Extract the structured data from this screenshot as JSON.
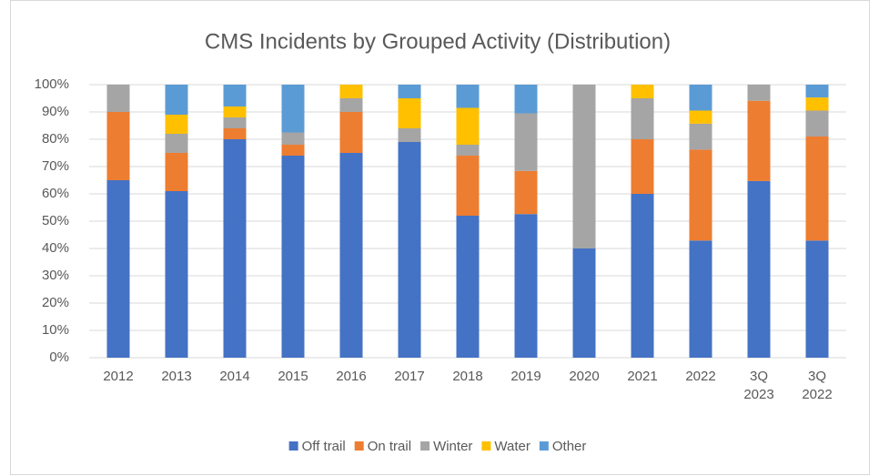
{
  "chart_data": {
    "type": "stacked_bar_100",
    "title": "CMS Incidents by Grouped Activity (Distribution)",
    "categories": [
      "2012",
      "2013",
      "2014",
      "2015",
      "2016",
      "2017",
      "2018",
      "2019",
      "2020",
      "2021",
      "2022",
      "3Q 2023",
      "3Q 2022"
    ],
    "series": [
      {
        "name": "Off trail",
        "color": "#4472c4",
        "values": [
          65,
          61,
          80,
          74,
          75,
          79,
          52,
          52.6,
          40,
          60,
          42.9,
          64.7,
          42.9
        ]
      },
      {
        "name": "On trail",
        "color": "#ed7d31",
        "values": [
          25,
          14,
          4,
          4,
          15,
          0,
          22,
          15.8,
          0,
          20,
          33.3,
          29.4,
          38.1
        ]
      },
      {
        "name": "Winter",
        "color": "#a5a5a5",
        "values": [
          10,
          7,
          4,
          4.5,
          5,
          5,
          4,
          21.1,
          60,
          15,
          9.5,
          5.9,
          9.5
        ]
      },
      {
        "name": "Water",
        "color": "#ffc000",
        "values": [
          0,
          7,
          4,
          0,
          5,
          11,
          13.5,
          0,
          0,
          5,
          4.8,
          0,
          4.8
        ]
      },
      {
        "name": "Other",
        "color": "#5b9bd5",
        "values": [
          0,
          11,
          8,
          17.5,
          0,
          5,
          8.5,
          10.5,
          0,
          0,
          9.5,
          0,
          4.7
        ]
      }
    ],
    "ylim": [
      0,
      100
    ],
    "yticks": [
      {
        "value": 0,
        "label": "0%"
      },
      {
        "value": 10,
        "label": "10%"
      },
      {
        "value": 20,
        "label": "20%"
      },
      {
        "value": 30,
        "label": "30%"
      },
      {
        "value": 40,
        "label": "40%"
      },
      {
        "value": 50,
        "label": "50%"
      },
      {
        "value": 60,
        "label": "60%"
      },
      {
        "value": 70,
        "label": "70%"
      },
      {
        "value": 80,
        "label": "80%"
      },
      {
        "value": 90,
        "label": "90%"
      },
      {
        "value": 100,
        "label": "100%"
      }
    ],
    "grid": true,
    "legend": "bottom"
  }
}
